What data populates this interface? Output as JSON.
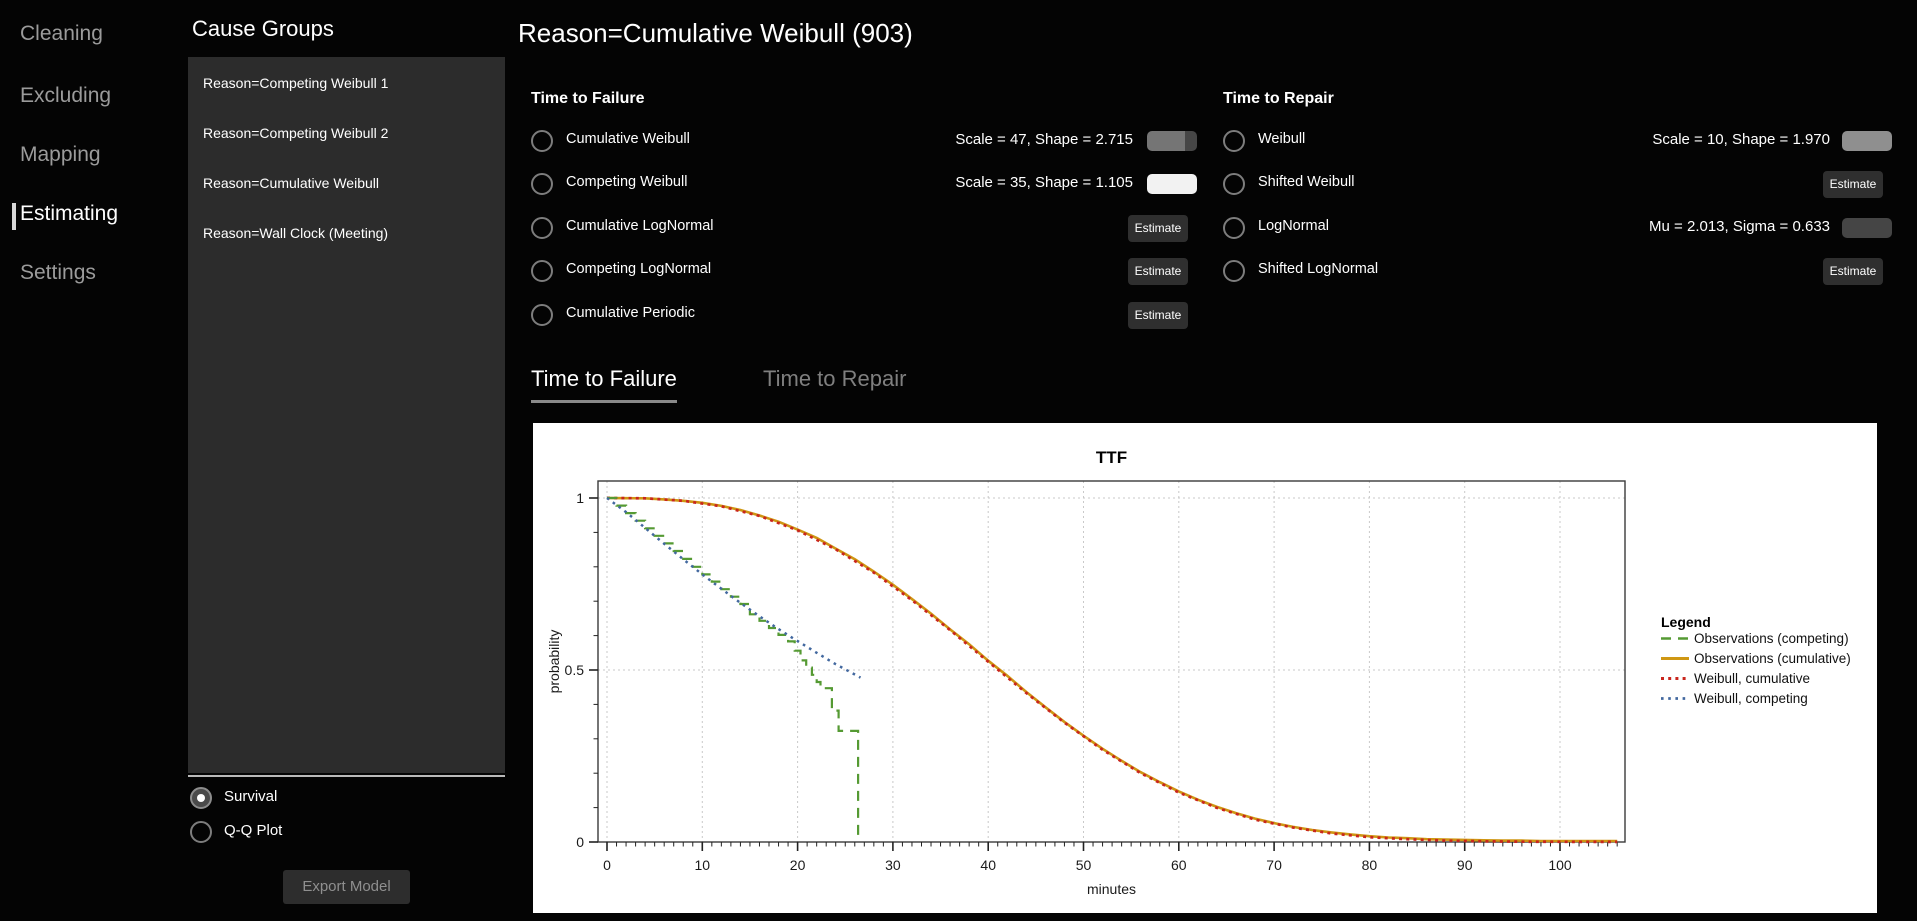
{
  "nav": {
    "items": [
      {
        "id": "cleaning",
        "label": "Cleaning",
        "active": false
      },
      {
        "id": "excluding",
        "label": "Excluding",
        "active": false
      },
      {
        "id": "mapping",
        "label": "Mapping",
        "active": false
      },
      {
        "id": "estimating",
        "label": "Estimating",
        "active": true
      },
      {
        "id": "settings",
        "label": "Settings",
        "active": false
      }
    ]
  },
  "cause_groups": {
    "title": "Cause Groups",
    "items": [
      "Reason=Competing Weibull 1",
      "Reason=Competing Weibull 2",
      "Reason=Cumulative Weibull",
      "Reason=Wall Clock (Meeting)"
    ]
  },
  "header": {
    "title": "Reason=Cumulative Weibull (903)"
  },
  "time_to_failure": {
    "title": "Time to Failure",
    "rows": [
      {
        "id": "cumulative-weibull",
        "label": "Cumulative Weibull",
        "selected": false,
        "value": "Scale = 47, Shape = 2.715",
        "control": "progress-swatch"
      },
      {
        "id": "competing-weibull",
        "label": "Competing Weibull",
        "selected": false,
        "value": "Scale = 35, Shape = 1.105",
        "control": "white-swatch"
      },
      {
        "id": "cumulative-lognormal",
        "label": "Cumulative LogNormal",
        "selected": false,
        "button": "Estimate"
      },
      {
        "id": "competing-lognormal",
        "label": "Competing LogNormal",
        "selected": false,
        "button": "Estimate"
      },
      {
        "id": "cumulative-periodic",
        "label": "Cumulative Periodic",
        "selected": false,
        "button": "Estimate"
      }
    ]
  },
  "time_to_repair": {
    "title": "Time to Repair",
    "rows": [
      {
        "id": "weibull",
        "label": "Weibull",
        "selected": false,
        "value": "Scale = 10, Shape = 1.970",
        "control": "gray-swatch"
      },
      {
        "id": "shifted-weibull",
        "label": "Shifted Weibull",
        "selected": false,
        "button": "Estimate"
      },
      {
        "id": "lognormal",
        "label": "LogNormal",
        "selected": false,
        "value": "Mu = 2.013, Sigma = 0.633",
        "control": "darkgray-swatch"
      },
      {
        "id": "shifted-lognormal",
        "label": "Shifted LogNormal",
        "selected": false,
        "button": "Estimate"
      }
    ]
  },
  "swatch_colors": {
    "progress-swatch": [
      "#757575",
      "#464646"
    ],
    "white-swatch": [
      "#f2f2f2",
      "#f2f2f2"
    ],
    "gray-swatch": [
      "#8f8f8f",
      "#8f8f8f"
    ],
    "darkgray-swatch": [
      "#454545",
      "#454545"
    ]
  },
  "plot_tabs": [
    {
      "id": "time-to-failure",
      "label": "Time to Failure",
      "active": true
    },
    {
      "id": "time-to-repair",
      "label": "Time to Repair",
      "active": false
    }
  ],
  "view_options": {
    "radios": [
      {
        "id": "survival",
        "label": "Survival",
        "selected": true
      },
      {
        "id": "qq-plot",
        "label": "Q-Q Plot",
        "selected": false
      }
    ],
    "export_button": "Export Model"
  },
  "chart_data": {
    "type": "line",
    "title": "TTF",
    "xlabel": "minutes",
    "ylabel": "probability",
    "xlim": [
      0,
      106.8
    ],
    "ylim": [
      0,
      1.06
    ],
    "x_ticks": [
      0,
      10,
      20,
      30,
      40,
      50,
      60,
      70,
      80,
      90,
      100
    ],
    "x_minor_step": 1,
    "y_ticks": [
      0,
      0.5,
      1
    ],
    "y_tick_labels": [
      "0",
      "0.5",
      "1"
    ],
    "y_minor_step": 0.1,
    "grid": true,
    "legend_position": "right",
    "legend_title": "Legend",
    "series": [
      {
        "name": "Observations (competing)",
        "color": "#559a33",
        "style": "dashed",
        "step": true,
        "points": [
          [
            0,
            1
          ],
          [
            1,
            0.978
          ],
          [
            2,
            0.956
          ],
          [
            3,
            0.934
          ],
          [
            4,
            0.912
          ],
          [
            5,
            0.89
          ],
          [
            6,
            0.868
          ],
          [
            7,
            0.846
          ],
          [
            8,
            0.823
          ],
          [
            9,
            0.8
          ],
          [
            10,
            0.778
          ],
          [
            11,
            0.757
          ],
          [
            12,
            0.735
          ],
          [
            13,
            0.713
          ],
          [
            14,
            0.692
          ],
          [
            15,
            0.662
          ],
          [
            16,
            0.643
          ],
          [
            17,
            0.622
          ],
          [
            18,
            0.602
          ],
          [
            19,
            0.583
          ],
          [
            19.7,
            0.556
          ],
          [
            20.3,
            0.528
          ],
          [
            20.9,
            0.507
          ],
          [
            21.5,
            0.486
          ],
          [
            22,
            0.465
          ],
          [
            22.4,
            0.447
          ],
          [
            23.6,
            0.382
          ],
          [
            24.3,
            0.323
          ],
          [
            26.3,
            0.323
          ],
          [
            26.35,
            0.002
          ]
        ]
      },
      {
        "name": "Observations (cumulative)",
        "color": "#cf9713",
        "style": "solid",
        "step": false,
        "points": [
          [
            0,
            1
          ],
          [
            2,
            0.9995
          ],
          [
            4,
            0.999
          ],
          [
            6,
            0.996
          ],
          [
            8,
            0.992
          ],
          [
            10,
            0.986
          ],
          [
            12,
            0.977
          ],
          [
            14,
            0.965
          ],
          [
            16,
            0.949
          ],
          [
            18,
            0.931
          ],
          [
            20,
            0.908
          ],
          [
            22,
            0.884
          ],
          [
            24,
            0.853
          ],
          [
            26,
            0.822
          ],
          [
            28,
            0.786
          ],
          [
            30,
            0.748
          ],
          [
            32,
            0.706
          ],
          [
            34,
            0.664
          ],
          [
            36,
            0.618
          ],
          [
            38,
            0.575
          ],
          [
            40,
            0.527
          ],
          [
            42,
            0.483
          ],
          [
            44,
            0.436
          ],
          [
            46,
            0.392
          ],
          [
            48,
            0.349
          ],
          [
            50,
            0.309
          ],
          [
            52,
            0.271
          ],
          [
            54,
            0.236
          ],
          [
            56,
            0.203
          ],
          [
            58,
            0.174
          ],
          [
            60,
            0.147
          ],
          [
            62,
            0.123
          ],
          [
            64,
            0.102
          ],
          [
            66,
            0.084
          ],
          [
            68,
            0.068
          ],
          [
            70,
            0.055
          ],
          [
            72,
            0.044
          ],
          [
            74,
            0.035
          ],
          [
            76,
            0.028
          ],
          [
            78,
            0.022
          ],
          [
            80,
            0.017
          ],
          [
            82,
            0.013
          ],
          [
            84,
            0.011
          ],
          [
            86,
            0.008
          ],
          [
            88,
            0.007
          ],
          [
            90,
            0.006
          ],
          [
            92,
            0.005
          ],
          [
            94,
            0.004
          ],
          [
            96,
            0.004
          ],
          [
            98,
            0.003
          ],
          [
            100,
            0.003
          ],
          [
            103,
            0.003
          ],
          [
            106,
            0.003
          ]
        ]
      },
      {
        "name": "Weibull, cumulative",
        "color": "#c9261d",
        "style": "dotted",
        "step": false,
        "points": [
          [
            0,
            1
          ],
          [
            4,
            0.999
          ],
          [
            8,
            0.992
          ],
          [
            12,
            0.976
          ],
          [
            16,
            0.948
          ],
          [
            20,
            0.906
          ],
          [
            24,
            0.851
          ],
          [
            28,
            0.783
          ],
          [
            32,
            0.703
          ],
          [
            36,
            0.616
          ],
          [
            40,
            0.524
          ],
          [
            44,
            0.433
          ],
          [
            48,
            0.347
          ],
          [
            52,
            0.268
          ],
          [
            56,
            0.2
          ],
          [
            60,
            0.144
          ],
          [
            64,
            0.099
          ],
          [
            68,
            0.065
          ],
          [
            72,
            0.042
          ],
          [
            76,
            0.025
          ],
          [
            80,
            0.014
          ],
          [
            84,
            0.008
          ],
          [
            88,
            0.004
          ],
          [
            92,
            0.002
          ],
          [
            96,
            0.001
          ],
          [
            100,
            0.0005
          ],
          [
            103,
            0.0003
          ],
          [
            106,
            0.0002
          ]
        ]
      },
      {
        "name": "Weibull, competing",
        "color": "#42689f",
        "style": "dotted",
        "step": false,
        "points": [
          [
            0,
            1
          ],
          [
            2,
            0.959
          ],
          [
            4,
            0.913
          ],
          [
            6,
            0.867
          ],
          [
            8,
            0.822
          ],
          [
            10,
            0.778
          ],
          [
            12,
            0.736
          ],
          [
            14,
            0.695
          ],
          [
            16,
            0.656
          ],
          [
            18,
            0.619
          ],
          [
            20,
            0.584
          ],
          [
            22,
            0.55
          ],
          [
            24,
            0.517
          ],
          [
            26,
            0.487
          ],
          [
            26.6,
            0.478
          ]
        ]
      }
    ]
  }
}
